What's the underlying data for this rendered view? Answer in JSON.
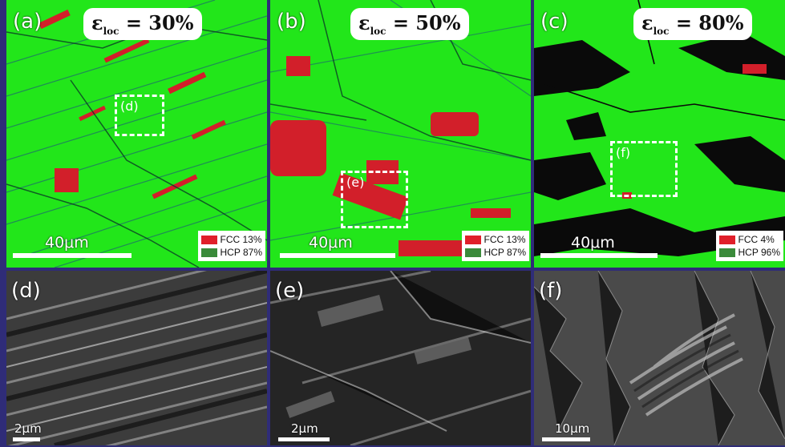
{
  "panels": {
    "a": {
      "label": "(a)",
      "strain_symbol": "ε",
      "strain_sub": "loc",
      "strain_value": " = 30%",
      "inset_label": "(d)",
      "scale": "40μm",
      "fcc": "FCC 13%",
      "hcp": "HCP 87%"
    },
    "b": {
      "label": "(b)",
      "strain_symbol": "ε",
      "strain_sub": "loc",
      "strain_value": " = 50%",
      "inset_label": "(e)",
      "scale": "40μm",
      "fcc": "FCC 13%",
      "hcp": "HCP 87%"
    },
    "c": {
      "label": "(c)",
      "strain_symbol": "ε",
      "strain_sub": "loc",
      "strain_value": " = 80%",
      "inset_label": "(f)",
      "scale": "40μm",
      "fcc": "FCC 4%",
      "hcp": "HCP 96%"
    },
    "d": {
      "label": "(d)",
      "scale": "2μm"
    },
    "e": {
      "label": "(e)",
      "scale": "2μm"
    },
    "f": {
      "label": "(f)",
      "scale": "10μm"
    }
  },
  "colors": {
    "fcc": "#e01f2a",
    "hcp": "#3a8a3a",
    "map_green": "#22e61a",
    "frame": "#2f2c78"
  }
}
